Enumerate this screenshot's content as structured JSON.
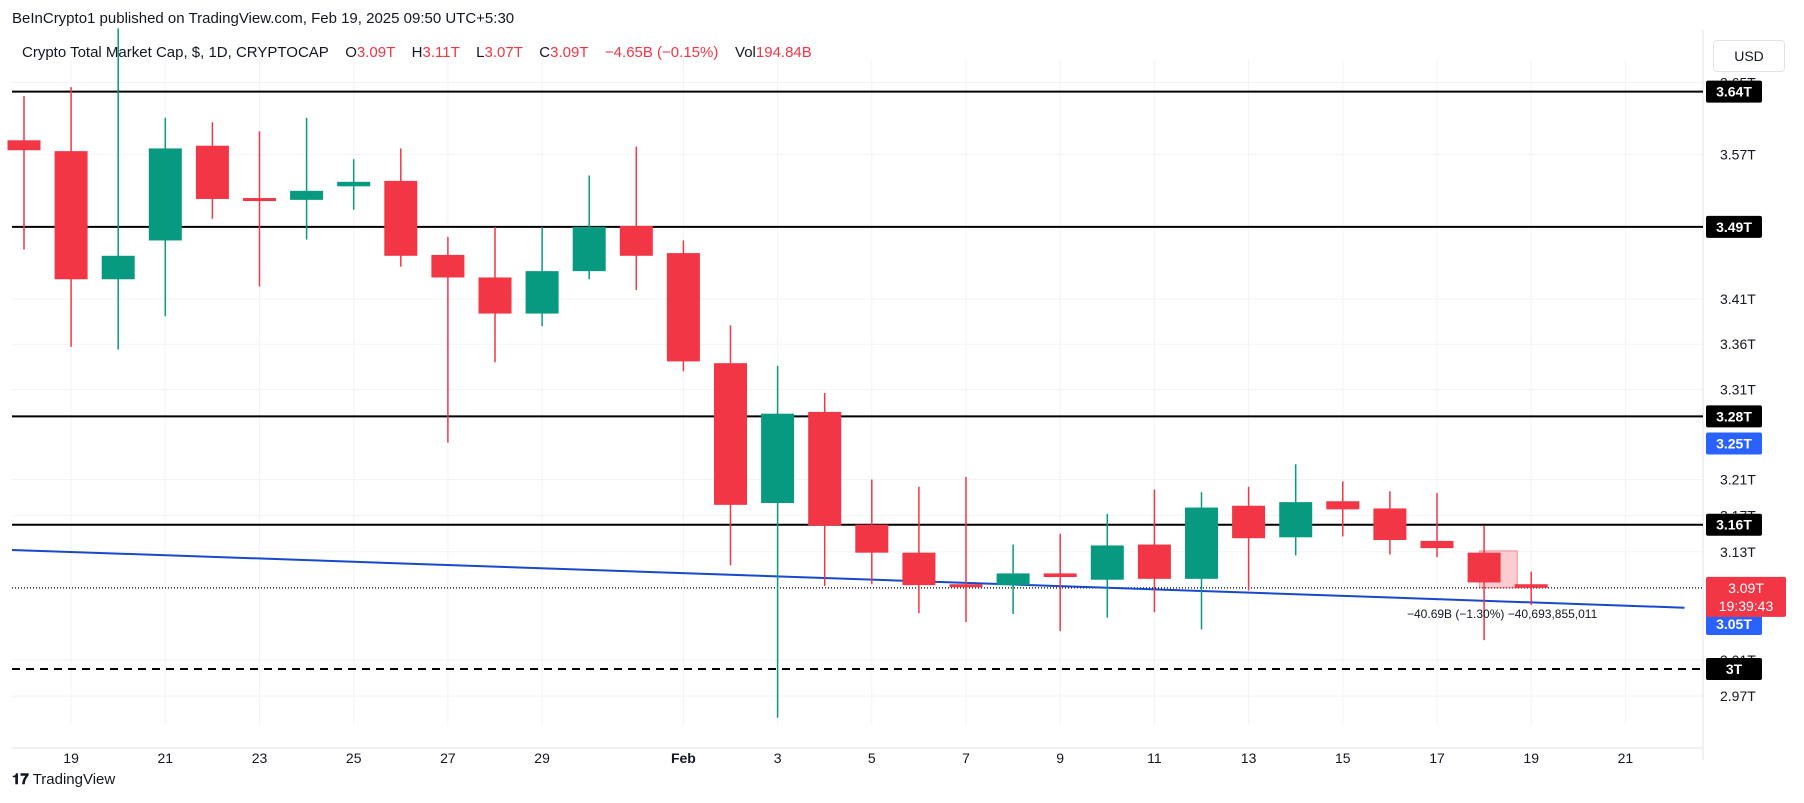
{
  "header": {
    "publish_line": "BeInCrypto1 published on TradingView.com, Feb 19, 2025 09:50 UTC+5:30"
  },
  "legend": {
    "symbol": "Crypto Total Market Cap, $, 1D, CRYPTOCAP",
    "o_label": "O",
    "o_value": "3.09T",
    "h_label": "H",
    "h_value": "3.11T",
    "l_label": "L",
    "l_value": "3.07T",
    "c_label": "C",
    "c_value": "3.09T",
    "change": "−4.65B (−0.15%)",
    "vol_label": "Vol",
    "vol_value": "194.84B"
  },
  "currency_button": "USD",
  "footer": {
    "brand": "TradingView"
  },
  "colors": {
    "up": "#089981",
    "down": "#f23645",
    "trendline": "#1848cc",
    "level_line": "#000000",
    "label_black": "#000000",
    "label_blue": "#2962ff",
    "label_red": "#f23645"
  },
  "chart_data": {
    "type": "candlestick",
    "ylim": [
      2.938,
      3.675
    ],
    "x_ticks": [
      "19",
      "21",
      "23",
      "25",
      "27",
      "29",
      "Feb",
      "3",
      "5",
      "7",
      "9",
      "11",
      "13",
      "15",
      "17",
      "19",
      "21"
    ],
    "y_ticks": [
      "3.65T",
      "3.57T",
      "3.41T",
      "3.36T",
      "3.31T",
      "3.21T",
      "3.17T",
      "3.13T",
      "3.01T",
      "2.97T"
    ],
    "candles": [
      {
        "date": "Jan 18",
        "o": 3.586,
        "h": 3.635,
        "l": 3.465,
        "c": 3.575
      },
      {
        "date": "Jan 19",
        "o": 3.574,
        "h": 3.645,
        "l": 3.357,
        "c": 3.432
      },
      {
        "date": "Jan 20",
        "o": 3.432,
        "h": 3.71,
        "l": 3.354,
        "c": 3.458
      },
      {
        "date": "Jan 21",
        "o": 3.475,
        "h": 3.611,
        "l": 3.391,
        "c": 3.577
      },
      {
        "date": "Jan 22",
        "o": 3.58,
        "h": 3.606,
        "l": 3.499,
        "c": 3.521
      },
      {
        "date": "Jan 23",
        "o": 3.522,
        "h": 3.596,
        "l": 3.424,
        "c": 3.519
      },
      {
        "date": "Jan 24",
        "o": 3.52,
        "h": 3.611,
        "l": 3.476,
        "c": 3.53
      },
      {
        "date": "Jan 25",
        "o": 3.535,
        "h": 3.565,
        "l": 3.509,
        "c": 3.54
      },
      {
        "date": "Jan 26",
        "o": 3.541,
        "h": 3.577,
        "l": 3.446,
        "c": 3.458
      },
      {
        "date": "Jan 27",
        "o": 3.459,
        "h": 3.479,
        "l": 3.251,
        "c": 3.434
      },
      {
        "date": "Jan 28",
        "o": 3.434,
        "h": 3.49,
        "l": 3.34,
        "c": 3.394
      },
      {
        "date": "Jan 29",
        "o": 3.394,
        "h": 3.49,
        "l": 3.38,
        "c": 3.441
      },
      {
        "date": "Jan 30",
        "o": 3.441,
        "h": 3.547,
        "l": 3.432,
        "c": 3.49
      },
      {
        "date": "Jan 31",
        "o": 3.491,
        "h": 3.579,
        "l": 3.42,
        "c": 3.458
      },
      {
        "date": "Feb 1",
        "o": 3.461,
        "h": 3.475,
        "l": 3.33,
        "c": 3.341
      },
      {
        "date": "Feb 2",
        "o": 3.339,
        "h": 3.381,
        "l": 3.115,
        "c": 3.182
      },
      {
        "date": "Feb 3",
        "o": 3.184,
        "h": 3.336,
        "l": 2.946,
        "c": 3.283
      },
      {
        "date": "Feb 4",
        "o": 3.285,
        "h": 3.306,
        "l": 3.092,
        "c": 3.159
      },
      {
        "date": "Feb 5",
        "o": 3.16,
        "h": 3.21,
        "l": 3.094,
        "c": 3.129
      },
      {
        "date": "Feb 6",
        "o": 3.129,
        "h": 3.202,
        "l": 3.062,
        "c": 3.093
      },
      {
        "date": "Feb 7",
        "o": 3.094,
        "h": 3.213,
        "l": 3.052,
        "c": 3.092
      },
      {
        "date": "Feb 8",
        "o": 3.093,
        "h": 3.138,
        "l": 3.061,
        "c": 3.106
      },
      {
        "date": "Feb 9",
        "o": 3.106,
        "h": 3.15,
        "l": 3.042,
        "c": 3.102
      },
      {
        "date": "Feb 10",
        "o": 3.099,
        "h": 3.172,
        "l": 3.057,
        "c": 3.137
      },
      {
        "date": "Feb 11",
        "o": 3.138,
        "h": 3.199,
        "l": 3.063,
        "c": 3.1
      },
      {
        "date": "Feb 12",
        "o": 3.1,
        "h": 3.196,
        "l": 3.044,
        "c": 3.179
      },
      {
        "date": "Feb 13",
        "o": 3.181,
        "h": 3.202,
        "l": 3.087,
        "c": 3.145
      },
      {
        "date": "Feb 14",
        "o": 3.146,
        "h": 3.227,
        "l": 3.126,
        "c": 3.185
      },
      {
        "date": "Feb 15",
        "o": 3.186,
        "h": 3.208,
        "l": 3.147,
        "c": 3.177
      },
      {
        "date": "Feb 16",
        "o": 3.178,
        "h": 3.197,
        "l": 3.127,
        "c": 3.143
      },
      {
        "date": "Feb 17",
        "o": 3.142,
        "h": 3.195,
        "l": 3.124,
        "c": 3.134
      },
      {
        "date": "Feb 18",
        "o": 3.129,
        "h": 3.159,
        "l": 3.032,
        "c": 3.096
      },
      {
        "date": "Feb 19",
        "o": 3.094,
        "h": 3.108,
        "l": 3.071,
        "c": 3.09
      }
    ],
    "horizontal_levels": [
      {
        "value": 3.64,
        "label": "3.64T",
        "style": "solid"
      },
      {
        "value": 3.49,
        "label": "3.49T",
        "style": "solid"
      },
      {
        "value": 3.28,
        "label": "3.28T",
        "style": "solid"
      },
      {
        "value": 3.16,
        "label": "3.16T",
        "style": "solid"
      },
      {
        "value": 3.0,
        "label": "3T",
        "style": "dashed"
      }
    ],
    "current_price": {
      "value": 3.09,
      "label": "3.09T",
      "countdown": "19:39:43"
    },
    "axis_labels": [
      {
        "value": 3.25,
        "label": "3.25T",
        "color": "blue"
      },
      {
        "value": 3.09,
        "label": "3.09T",
        "color": "black"
      },
      {
        "value": 3.05,
        "label": "3.05T",
        "color": "blue"
      }
    ],
    "trendline": {
      "start": {
        "date": "Jan 18",
        "value": 3.132
      },
      "end": {
        "date": "Feb 22",
        "value": 3.068
      }
    },
    "measurement": {
      "from_date": "Feb 18",
      "to_date": "Feb 19",
      "from_value": 3.131,
      "to_value": 3.09,
      "label": "−40.69B (−1.30%) −40,693,855,011"
    }
  }
}
